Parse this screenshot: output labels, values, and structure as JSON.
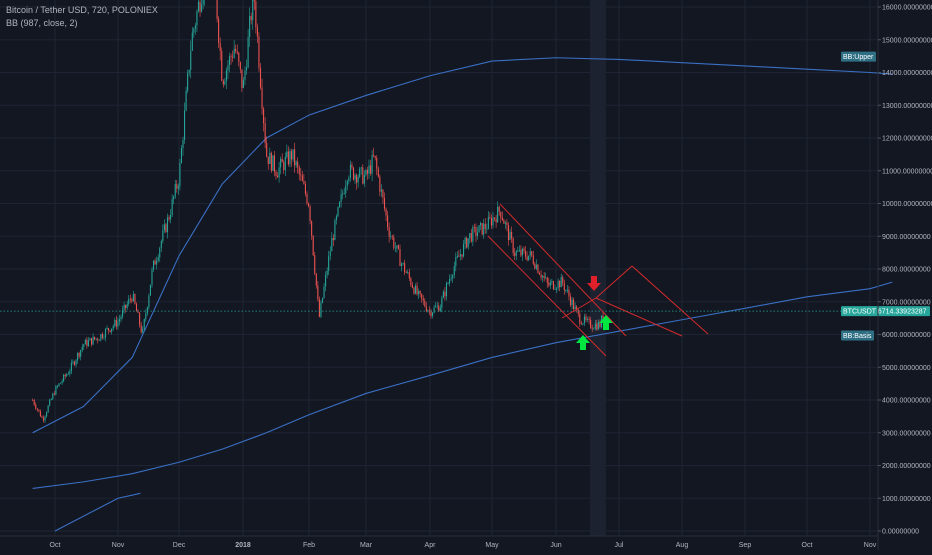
{
  "legend": {
    "title": "Bitcoin / Tether USD, 720, POLONIEX",
    "indicator": "BB (987, close, 2)"
  },
  "colors": {
    "background": "#131722",
    "grid": "#1e2433",
    "candle_up": "#26a69a",
    "candle_down": "#ef5350",
    "bb_line": "#3a6fc4",
    "channel": "#d12b2b",
    "arrow_down": "#e0202a",
    "arrow_up": "#00e640",
    "price_line": "#26a69a",
    "tag_bb": "#2f6f84",
    "tag_price": "#26a69a"
  },
  "chart_data": {
    "type": "line",
    "symbol": "BTCUSDT",
    "ylim": [
      0,
      16000
    ],
    "y_ticks": [
      "0.00000000",
      "1000.00000000",
      "2000.00000000",
      "3000.00000000",
      "4000.00000000",
      "5000.00000000",
      "6000.00000000",
      "7000.00000000",
      "8000.00000000",
      "9000.00000000",
      "10000.00000000",
      "11000.00000000",
      "12000.00000000",
      "13000.00000000",
      "14000.00000000",
      "15000.00000000",
      "16000.00000000"
    ],
    "x_ticks": [
      "Oct",
      "Nov",
      "Dec",
      "2018",
      "Feb",
      "Mar",
      "Apr",
      "May",
      "Jun",
      "Jul",
      "Aug",
      "Sep",
      "Oct",
      "Nov"
    ],
    "series": [
      {
        "label": "BTCUSDT",
        "x": [
          "Sep 20",
          "Sep 25",
          "Oct 1",
          "Oct 8",
          "Oct 15",
          "Oct 22",
          "Nov 1",
          "Nov 8",
          "Nov 13",
          "Nov 18",
          "Nov 26",
          "Dec 1",
          "Dec 7",
          "Dec 12",
          "Dec 17",
          "Dec 22",
          "Dec 28",
          "Jan 1",
          "Jan 6",
          "Jan 12",
          "Jan 17",
          "Jan 24",
          "Feb 1",
          "Feb 6",
          "Feb 12",
          "Feb 20",
          "Mar 1",
          "Mar 5",
          "Mar 12",
          "Mar 18",
          "Mar 26",
          "Apr 1",
          "Apr 6",
          "Apr 12",
          "Apr 20",
          "Apr 28",
          "May 5",
          "May 12",
          "May 20",
          "May 28",
          "Jun 4",
          "Jun 12",
          "Jun 17",
          "Jun 22",
          "Jun 24"
        ],
        "values": [
          4000,
          3400,
          4300,
          4900,
          5700,
          5900,
          6400,
          7200,
          6000,
          8000,
          9600,
          10800,
          15000,
          16500,
          17800,
          13800,
          14800,
          13500,
          16500,
          11500,
          11000,
          11500,
          10000,
          6500,
          8800,
          11000,
          10800,
          11400,
          9200,
          8200,
          7200,
          6700,
          6900,
          8000,
          9000,
          9300,
          9800,
          8500,
          8400,
          7500,
          7600,
          6500,
          6300,
          6300,
          6714.33923287
        ]
      },
      {
        "label": "BB:Upper",
        "x": [
          "Sep 20",
          "Oct 15",
          "Nov 8",
          "Dec 1",
          "Dec 22",
          "Jan 12",
          "Feb 1",
          "Mar 1",
          "Apr 1",
          "May 1",
          "Jun 1",
          "Jul 1",
          "Aug 1",
          "Sep 1",
          "Oct 1",
          "Nov 1",
          "Nov 12"
        ],
        "values": [
          3000,
          3800,
          5300,
          8400,
          10600,
          12000,
          12700,
          13300,
          13900,
          14350,
          14450,
          14400,
          14300,
          14200,
          14100,
          14000,
          13950
        ]
      },
      {
        "label": "BB:Basis",
        "x": [
          "Sep 20",
          "Oct 15",
          "Nov 8",
          "Dec 1",
          "Dec 22",
          "Jan 12",
          "Feb 1",
          "Mar 1",
          "Apr 1",
          "May 1",
          "Jun 1",
          "Jul 1",
          "Aug 1",
          "Sep 1",
          "Oct 1",
          "Nov 1",
          "Nov 12"
        ],
        "values": [
          1300,
          1500,
          1750,
          2100,
          2500,
          3000,
          3550,
          4200,
          4750,
          5300,
          5750,
          6100,
          6450,
          6800,
          7150,
          7400,
          7600
        ]
      },
      {
        "label": "BB:Lower",
        "x": [
          "Oct 1",
          "Nov 1",
          "Nov 12"
        ],
        "values": [
          0,
          1000,
          1150
        ]
      }
    ],
    "last_price_label": "BTCUSDT",
    "last_price_value": "6714.33923287",
    "bb_upper_label": "BB:Upper",
    "bb_basis_label": "BB:Basis",
    "annotations": [
      "descending channel (red)",
      "red arrow down",
      "two green arrows up"
    ]
  }
}
